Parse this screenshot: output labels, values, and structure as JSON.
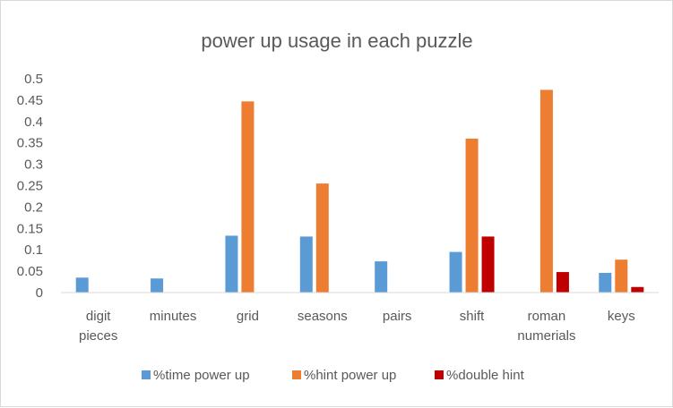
{
  "chart_data": {
    "type": "bar",
    "title": "power up usage in each puzzle",
    "xlabel": "",
    "ylabel": "",
    "ylim": [
      0,
      0.5
    ],
    "yticks": [
      "0",
      "0.05",
      "0.1",
      "0.15",
      "0.2",
      "0.25",
      "0.3",
      "0.35",
      "0.4",
      "0.45",
      "0.5"
    ],
    "categories": [
      [
        "digit",
        "pieces"
      ],
      [
        "minutes"
      ],
      [
        "grid"
      ],
      [
        "seasons"
      ],
      [
        "pairs"
      ],
      [
        "shift"
      ],
      [
        "roman",
        "numerials"
      ],
      [
        "keys"
      ]
    ],
    "series": [
      {
        "name": "%time power up",
        "color": "#5b9bd5",
        "values": [
          0.035,
          0.033,
          0.133,
          0.131,
          0.073,
          0.095,
          0,
          0.046
        ]
      },
      {
        "name": "%hint power up",
        "color": "#ed7d31",
        "values": [
          0,
          0,
          0.447,
          0.255,
          0,
          0.36,
          0.474,
          0.077
        ]
      },
      {
        "name": "%double hint",
        "color": "#c00000",
        "values": [
          0,
          0,
          0,
          0,
          0,
          0.131,
          0.048,
          0.013
        ]
      }
    ],
    "grid": false,
    "legend_position": "bottom"
  }
}
